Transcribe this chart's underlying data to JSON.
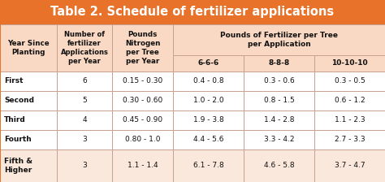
{
  "title": "Table 2. Schedule of fertilizer applications",
  "title_bg": "#E8722A",
  "title_color": "#FFFFFF",
  "header_bg": "#F9D9C3",
  "header_color": "#111111",
  "row_bg": "#FFFFFF",
  "last_row_bg": "#FAE8DC",
  "border_color": "#C8A090",
  "col_headers_0": "Year Since\nPlanting",
  "col_headers_1": "Number of\nfertilizer\nApplications\nper Year",
  "col_headers_2": "Pounds\nNitrogen\nper Tree\nper Year",
  "col_headers_3": "Pounds of Fertilizer per Tree\nper Application",
  "sub_headers": [
    "6-6-6",
    "8-8-8",
    "10-10-10"
  ],
  "rows": [
    [
      "First",
      "6",
      "0.15 - 0.30",
      "0.4 - 0.8",
      "0.3 - 0.6",
      "0.3 - 0.5"
    ],
    [
      "Second",
      "5",
      "0.30 - 0.60",
      "1.0 - 2.0",
      "0.8 - 1.5",
      "0.6 - 1.2"
    ],
    [
      "Third",
      "4",
      "0.45 - 0.90",
      "1.9 - 3.8",
      "1.4 - 2.8",
      "1.1 - 2.3"
    ],
    [
      "Fourth",
      "3",
      "0.80 - 1.0",
      "4.4 - 5.6",
      "3.3 - 4.2",
      "2.7 - 3.3"
    ],
    [
      "Fifth &\nHigher",
      "3",
      "1.1 - 1.4",
      "6.1 - 7.8",
      "4.6 - 5.8",
      "3.7 - 4.7"
    ]
  ],
  "figsize": [
    4.74,
    2.24
  ],
  "dpi": 100
}
